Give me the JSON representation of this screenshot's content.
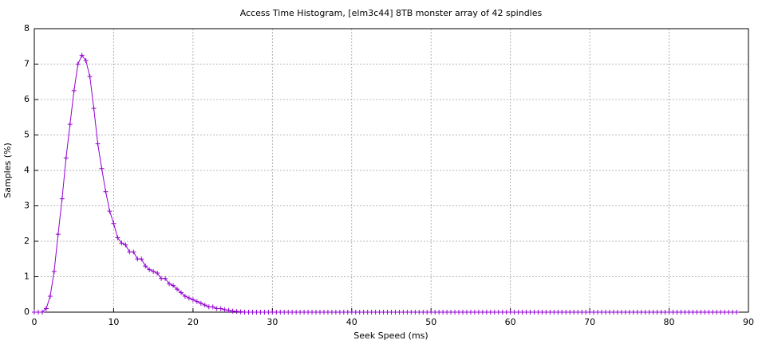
{
  "chart_data": {
    "type": "line",
    "title": "Access Time Histogram, [elm3c44] 8TB monster array of 42 spindles",
    "x_label": "Seek Speed (ms)",
    "y_label": "Samples (%)",
    "xlim": [
      0,
      90
    ],
    "ylim": [
      0,
      8
    ],
    "xticks": [
      0,
      10,
      20,
      30,
      40,
      50,
      60,
      70,
      80,
      90
    ],
    "yticks": [
      0,
      1,
      2,
      3,
      4,
      5,
      6,
      7,
      8
    ],
    "grid": true,
    "x": [
      0,
      0.5,
      1,
      1.5,
      2,
      2.5,
      3,
      3.5,
      4,
      4.5,
      5,
      5.5,
      6,
      6.5,
      7,
      7.5,
      8,
      8.5,
      9,
      9.5,
      10,
      10.5,
      11,
      11.5,
      12,
      12.5,
      13,
      13.5,
      14,
      14.5,
      15,
      15.5,
      16,
      16.5,
      17,
      17.5,
      18,
      18.5,
      19,
      19.5,
      20,
      20.5,
      21,
      21.5,
      22,
      22.5,
      23,
      23.5,
      24,
      24.5,
      25,
      25.5,
      26,
      26.5,
      27,
      27.5,
      28,
      28.5,
      29,
      29.5,
      30,
      30.5,
      31,
      31.5,
      32,
      32.5,
      33,
      33.5,
      34,
      34.5,
      35,
      35.5,
      36,
      36.5,
      37,
      37.5,
      38,
      38.5,
      39,
      39.5,
      40,
      40.5,
      41,
      41.5,
      42,
      42.5,
      43,
      43.5,
      44,
      44.5,
      45,
      45.5,
      46,
      46.5,
      47,
      47.5,
      48,
      48.5,
      49,
      49.5,
      50,
      50.5,
      51,
      51.5,
      52,
      52.5,
      53,
      53.5,
      54,
      54.5,
      55,
      55.5,
      56,
      56.5,
      57,
      57.5,
      58,
      58.5,
      59,
      59.5,
      60,
      60.5,
      61,
      61.5,
      62,
      62.5,
      63,
      63.5,
      64,
      64.5,
      65,
      65.5,
      66,
      66.5,
      67,
      67.5,
      68,
      68.5,
      69,
      69.5,
      70,
      70.5,
      71,
      71.5,
      72,
      72.5,
      73,
      73.5,
      74,
      74.5,
      75,
      75.5,
      76,
      76.5,
      77,
      77.5,
      78,
      78.5,
      79,
      79.5,
      80,
      80.5,
      81,
      81.5,
      82,
      82.5,
      83,
      83.5,
      84,
      84.5,
      85,
      85.5,
      86,
      86.5,
      87,
      87.5,
      88,
      88.5
    ],
    "series": [
      {
        "color": "#9400d3",
        "values": [
          0,
          0,
          0,
          0.1,
          0.45,
          1.15,
          2.2,
          3.2,
          4.35,
          5.3,
          6.25,
          7.0,
          7.25,
          7.1,
          6.65,
          5.75,
          4.75,
          4.05,
          3.4,
          2.85,
          2.5,
          2.1,
          1.95,
          1.9,
          1.7,
          1.7,
          1.5,
          1.5,
          1.3,
          1.2,
          1.15,
          1.1,
          0.95,
          0.95,
          0.8,
          0.75,
          0.65,
          0.55,
          0.45,
          0.4,
          0.35,
          0.3,
          0.25,
          0.2,
          0.15,
          0.15,
          0.1,
          0.1,
          0.07,
          0.05,
          0.03,
          0.02,
          0.01,
          0,
          0,
          0,
          0,
          0,
          0,
          0,
          0,
          0,
          0,
          0,
          0,
          0,
          0,
          0,
          0,
          0,
          0,
          0,
          0,
          0,
          0,
          0,
          0,
          0,
          0,
          0,
          0,
          0,
          0,
          0,
          0,
          0,
          0,
          0,
          0,
          0,
          0,
          0,
          0,
          0,
          0,
          0,
          0,
          0,
          0,
          0,
          0,
          0,
          0,
          0,
          0,
          0,
          0,
          0,
          0,
          0,
          0,
          0,
          0,
          0,
          0,
          0,
          0,
          0,
          0,
          0,
          0,
          0,
          0,
          0,
          0,
          0,
          0,
          0,
          0,
          0,
          0,
          0,
          0,
          0,
          0,
          0,
          0,
          0,
          0,
          0,
          0,
          0,
          0,
          0,
          0,
          0,
          0,
          0,
          0,
          0,
          0,
          0,
          0,
          0,
          0,
          0,
          0,
          0,
          0,
          0,
          0,
          0,
          0,
          0,
          0,
          0,
          0,
          0,
          0,
          0,
          0,
          0,
          0,
          0,
          0,
          0,
          0,
          0
        ]
      }
    ]
  }
}
